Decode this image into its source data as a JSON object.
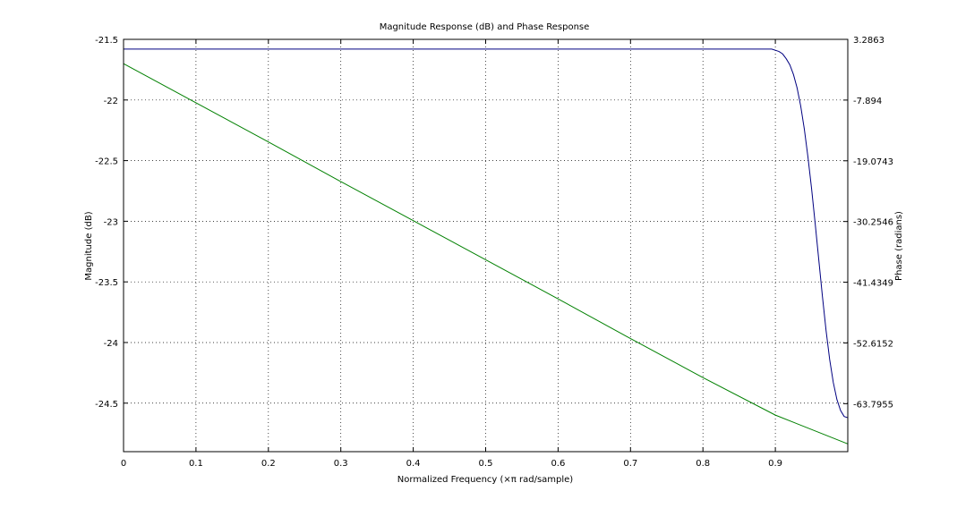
{
  "chart_data": {
    "type": "line",
    "title": "Magnitude Response (dB) and Phase Response",
    "xlabel": "Normalized Frequency (×π rad/sample)",
    "ylabel_left": "Magnitude (dB)",
    "ylabel_right": "Phase (radians)",
    "xlim": [
      0,
      1
    ],
    "ylim_left": [
      -24.9,
      -21.5
    ],
    "ylim_right": [
      -72.63,
      3.2863
    ],
    "x_ticks": [
      "0",
      "0.1",
      "0.2",
      "0.3",
      "0.4",
      "0.5",
      "0.6",
      "0.7",
      "0.8",
      "0.9"
    ],
    "y_ticks_left": [
      "-21.5",
      "-22",
      "-22.5",
      "-23",
      "-23.5",
      "-24",
      "-24.5"
    ],
    "y_ticks_right": [
      "3.2863",
      "-7.894",
      "-19.0743",
      "-30.2546",
      "-41.4349",
      "-52.6152",
      "-63.7955"
    ],
    "grid": true,
    "series": [
      {
        "axis": "left",
        "color": "#000080",
        "x": [
          0,
          0.5,
          0.89,
          0.895,
          0.9,
          0.905,
          0.91,
          0.915,
          0.92,
          0.925,
          0.93,
          0.935,
          0.94,
          0.945,
          0.95,
          0.955,
          0.96,
          0.965,
          0.97,
          0.975,
          0.98,
          0.985,
          0.99,
          0.995,
          1.0
        ],
        "y": [
          -21.58,
          -21.58,
          -21.58,
          -21.58,
          -21.59,
          -21.6,
          -21.62,
          -21.66,
          -21.71,
          -21.79,
          -21.9,
          -22.05,
          -22.24,
          -22.47,
          -22.73,
          -23.02,
          -23.32,
          -23.62,
          -23.9,
          -24.14,
          -24.33,
          -24.47,
          -24.56,
          -24.61,
          -24.62
        ]
      },
      {
        "axis": "right",
        "color": "#008000",
        "x": [
          0,
          0.1,
          0.2,
          0.3,
          0.4,
          0.5,
          0.6,
          0.7,
          0.8,
          0.9,
          1.0
        ],
        "y": [
          -1.2,
          -8.4,
          -15.6,
          -22.9,
          -30.1,
          -37.3,
          -44.5,
          -51.8,
          -59.0,
          -65.9,
          -71.2
        ]
      }
    ]
  }
}
